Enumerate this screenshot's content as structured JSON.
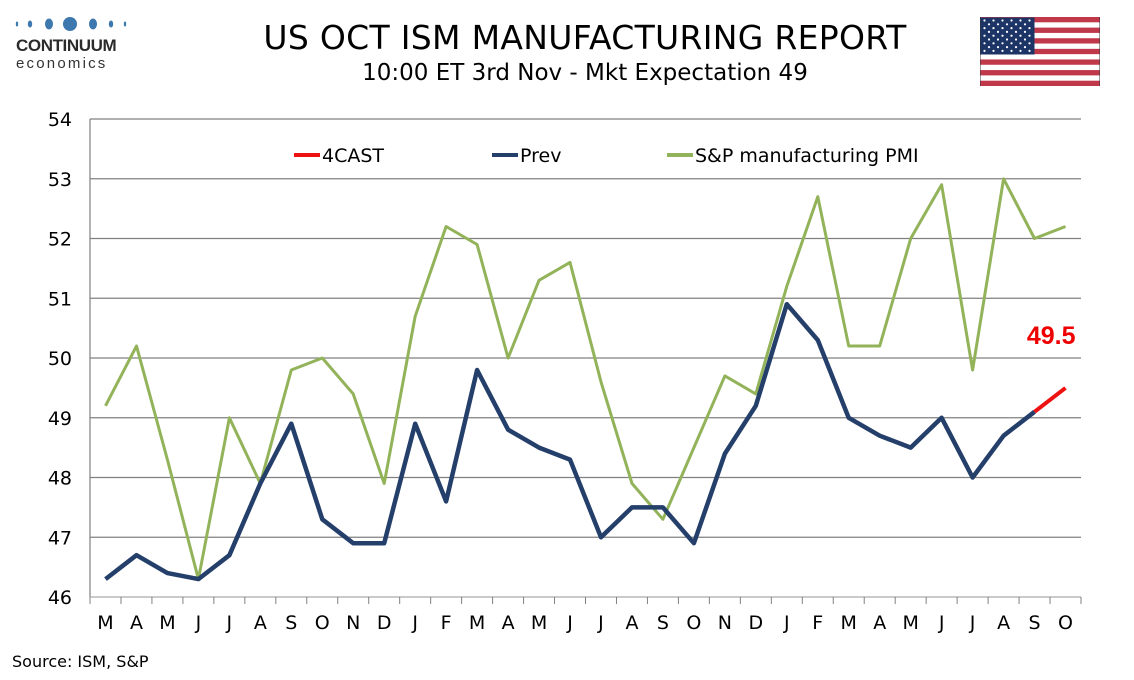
{
  "header": {
    "logo_name": "CONTINUUM",
    "logo_sub": "economics",
    "title": "US OCT ISM MANUFACTURING REPORT",
    "subtitle": "10:00 ET 3rd Nov - Mkt Expectation 49",
    "flag_icon": "us-flag-icon"
  },
  "footer": {
    "source": "Source: ISM, S&P"
  },
  "colors": {
    "forecast": "#ee1111",
    "prev": "#253f6b",
    "pmi": "#93b35a",
    "grid": "#808080",
    "logo_blue": "#3d78ae"
  },
  "chart_data": {
    "type": "line",
    "title": "US OCT ISM MANUFACTURING REPORT",
    "subtitle": "10:00 ET 3rd Nov - Mkt Expectation 49",
    "xlabel": "",
    "ylabel": "",
    "ylim": [
      46,
      54
    ],
    "yticks": [
      46,
      47,
      48,
      49,
      50,
      51,
      52,
      53,
      54
    ],
    "grid": true,
    "legend_position": "top-center",
    "categories": [
      "M",
      "A",
      "M",
      "J",
      "J",
      "A",
      "S",
      "O",
      "N",
      "D",
      "J",
      "F",
      "M",
      "A",
      "M",
      "J",
      "J",
      "A",
      "S",
      "O",
      "N",
      "D",
      "J",
      "F",
      "M",
      "A",
      "M",
      "J",
      "J",
      "A",
      "S",
      "O"
    ],
    "series": [
      {
        "name": "4CAST",
        "color": "#ee1111",
        "values": [
          null,
          null,
          null,
          null,
          null,
          null,
          null,
          null,
          null,
          null,
          null,
          null,
          null,
          null,
          null,
          null,
          null,
          null,
          null,
          null,
          null,
          null,
          null,
          null,
          null,
          null,
          null,
          null,
          null,
          null,
          49.1,
          49.5
        ]
      },
      {
        "name": "Prev",
        "color": "#253f6b",
        "values": [
          46.3,
          46.7,
          46.4,
          46.3,
          46.7,
          47.9,
          48.9,
          47.3,
          46.9,
          46.9,
          48.9,
          47.6,
          49.8,
          48.8,
          48.5,
          48.3,
          47.0,
          47.5,
          47.5,
          46.9,
          48.4,
          49.2,
          50.9,
          50.3,
          49.0,
          48.7,
          48.5,
          49.0,
          48.0,
          48.7,
          49.1,
          null
        ]
      },
      {
        "name": "S&P manufacturing PMI",
        "color": "#93b35a",
        "values": [
          49.2,
          50.2,
          48.3,
          46.3,
          49.0,
          47.9,
          49.8,
          50.0,
          49.4,
          47.9,
          50.7,
          52.2,
          51.9,
          50.0,
          51.3,
          51.6,
          49.6,
          47.9,
          47.3,
          48.5,
          49.7,
          49.4,
          51.2,
          52.7,
          50.2,
          50.2,
          52.0,
          52.9,
          49.8,
          53.0,
          52.0,
          52.2
        ]
      }
    ],
    "annotations": [
      {
        "text": "49.5",
        "series": "4CAST",
        "category_index": 31,
        "value": 49.5
      }
    ]
  }
}
